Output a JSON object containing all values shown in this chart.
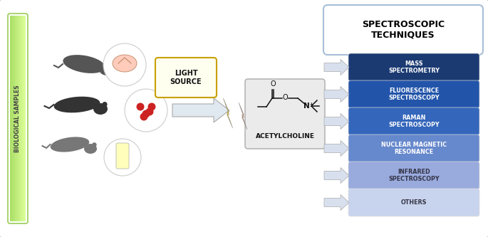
{
  "spectroscopic_title": "SPECTROSCOPIC\nTECHNIQUES",
  "bio_label": "BIOLOGICAL SAMPLES",
  "light_source_label": "LIGHT\nSOURCE",
  "acetylcholine_label": "ACETYLCHOLINE",
  "techniques": [
    {
      "label": "MASS\nSPECTROMETRY",
      "color": "#1B3A72"
    },
    {
      "label": "FLUORESCENCE\nSPECTROSCOPY",
      "color": "#2255AA"
    },
    {
      "label": "RAMAN\nSPECTROSCOPY",
      "color": "#3466BB"
    },
    {
      "label": "NUCLEAR MAGNETIC\nRESONANCE",
      "color": "#6688CC"
    },
    {
      "label": "INFRARED\nSPECTROSCOPY",
      "color": "#99AADD"
    },
    {
      "label": "OTHERS",
      "color": "#C8D4EE"
    }
  ],
  "bg_color": "#FFFFFF",
  "outer_border_color": "#CCCCCC",
  "bio_green_a": "#AADE66",
  "bio_green_b": "#DDFF99",
  "bio_border": "#99CC55",
  "light_box_fill": "#FFFFF0",
  "light_box_border": "#C8A000",
  "ac_box_fill": "#EBEBEB",
  "ac_box_border": "#AAAAAA",
  "title_box_border": "#A8BED8",
  "arrow_fill": "#D8E0EE",
  "arrow_border": "#AAAAAA",
  "bolt_yellow": "#FFD700",
  "bolt_orange": "#F09060"
}
